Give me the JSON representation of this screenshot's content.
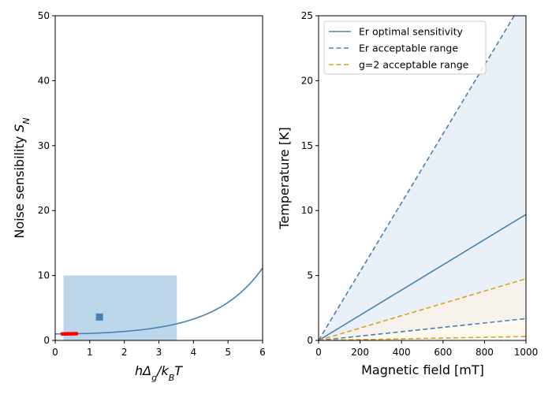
{
  "chart_data": [
    {
      "type": "line",
      "xlabel_parts": [
        {
          "t": "hΔ",
          "italic": true
        },
        {
          "t": "g",
          "italic": true,
          "sub": true
        },
        {
          "t": "/k",
          "italic": true
        },
        {
          "t": "B",
          "italic": true,
          "sub": true
        },
        {
          "t": "T",
          "italic": true
        }
      ],
      "ylabel_parts": [
        {
          "t": "Noise sensibility ",
          "italic": false
        },
        {
          "t": "S",
          "italic": true
        },
        {
          "t": "N",
          "italic": true,
          "sub": true
        }
      ],
      "xlim": [
        0,
        6
      ],
      "ylim": [
        0,
        50
      ],
      "xticks": [
        0,
        1,
        2,
        3,
        4,
        5,
        6
      ],
      "yticks": [
        0,
        10,
        20,
        30,
        40,
        50
      ],
      "grid": false,
      "series": [
        {
          "kind": "curve",
          "x_range": [
            0.02,
            6.0
          ],
          "color": "#4682b4",
          "width": 1.6
        },
        {
          "kind": "curve",
          "x_range": [
            0.2,
            0.62
          ],
          "color": "#ff0000",
          "width": 4.5
        }
      ],
      "shaded_region": {
        "x": [
          0.24,
          3.52
        ],
        "y": [
          0,
          10
        ],
        "color": "#bcd6ea"
      },
      "marker": {
        "x": 1.28,
        "y": 3.6,
        "shape": "square",
        "color": "#4682b4"
      }
    },
    {
      "type": "line",
      "xlabel": "Magnetic field [mT]",
      "ylabel": "Temperature [K]",
      "xlim": [
        0,
        1000
      ],
      "ylim": [
        0,
        25
      ],
      "xticks": [
        0,
        200,
        400,
        600,
        800,
        1000
      ],
      "yticks": [
        0,
        5,
        10,
        15,
        20,
        25
      ],
      "grid": false,
      "legend_position": "top-left",
      "series": [
        {
          "name": "Er optimal sensitivity",
          "x": [
            0,
            1000
          ],
          "y": [
            0,
            9.7
          ],
          "color": "#4682b4",
          "style": "solid"
        },
        {
          "name": "Er acceptable range",
          "x": [
            0,
            1000
          ],
          "y": [
            0,
            26.5
          ],
          "color": "#4682b4",
          "style": "dashed"
        },
        {
          "name": "",
          "x": [
            0,
            1000
          ],
          "y": [
            0,
            1.68
          ],
          "color": "#4682b4",
          "style": "dashed"
        },
        {
          "name": "g=2 acceptable range",
          "x": [
            0,
            1000
          ],
          "y": [
            0,
            4.75
          ],
          "color": "#e0a020",
          "style": "dashed"
        },
        {
          "name": "",
          "x": [
            0,
            1000
          ],
          "y": [
            0,
            0.3
          ],
          "color": "#e0a020",
          "style": "dashed"
        }
      ],
      "fill_regions": [
        {
          "between": [
            1,
            2
          ],
          "color": "#eaf0f8"
        },
        {
          "between": [
            3,
            4
          ],
          "color": "#fdf3e3"
        }
      ],
      "legend": [
        "Er optimal sensitivity",
        "Er acceptable range",
        "g=2 acceptable range"
      ]
    }
  ]
}
